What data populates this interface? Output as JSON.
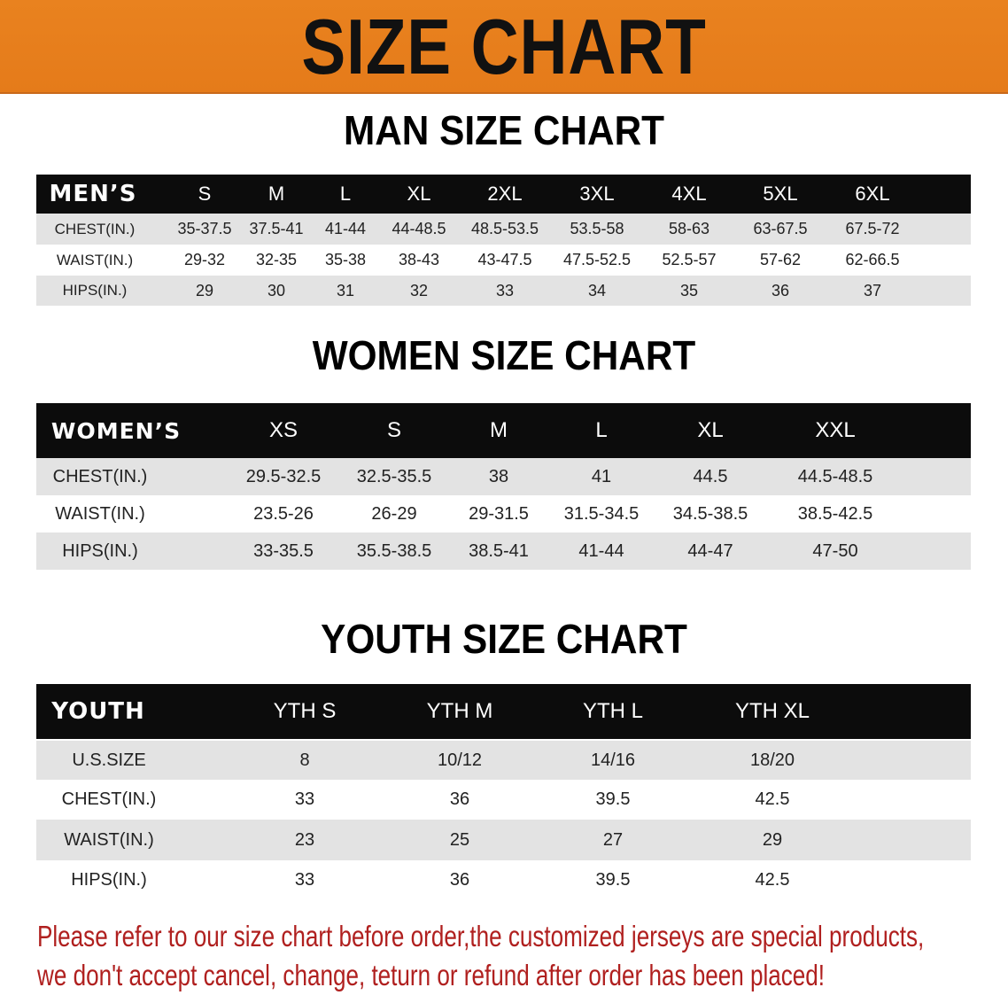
{
  "banner": {
    "title": "SIZE CHART",
    "color": "#e8801e"
  },
  "men": {
    "title": "MAN SIZE CHART",
    "header_label": "MEN’S",
    "sizes": [
      "S",
      "M",
      "L",
      "XL",
      "2XL",
      "3XL",
      "4XL",
      "5XL",
      "6XL"
    ],
    "rows": [
      {
        "label": "CHEST(IN.)",
        "values": [
          "35-37.5",
          "37.5-41",
          "41-44",
          "44-48.5",
          "48.5-53.5",
          "53.5-58",
          "58-63",
          "63-67.5",
          "67.5-72"
        ]
      },
      {
        "label": "WAIST(IN.)",
        "values": [
          "29-32",
          "32-35",
          "35-38",
          "38-43",
          "43-47.5",
          "47.5-52.5",
          "52.5-57",
          "57-62",
          "62-66.5"
        ]
      },
      {
        "label": "HIPS(IN.)",
        "values": [
          "29",
          "30",
          "31",
          "32",
          "33",
          "34",
          "35",
          "36",
          "37"
        ]
      }
    ]
  },
  "women": {
    "title": "WOMEN SIZE CHART",
    "header_label": "WOMEN’S",
    "sizes": [
      "XS",
      "S",
      "M",
      "L",
      "XL",
      "XXL"
    ],
    "rows": [
      {
        "label": "CHEST(IN.)",
        "values": [
          "29.5-32.5",
          "32.5-35.5",
          "38",
          "41",
          "44.5",
          "44.5-48.5"
        ]
      },
      {
        "label": "WAIST(IN.)",
        "values": [
          "23.5-26",
          "26-29",
          "29-31.5",
          "31.5-34.5",
          "34.5-38.5",
          "38.5-42.5"
        ]
      },
      {
        "label": "HIPS(IN.)",
        "values": [
          "33-35.5",
          "35.5-38.5",
          "38.5-41",
          "41-44",
          "44-47",
          "47-50"
        ]
      }
    ]
  },
  "youth": {
    "title": "YOUTH SIZE CHART",
    "header_label": "YOUTH",
    "sizes": [
      "YTH S",
      "YTH M",
      "YTH L",
      "YTH XL"
    ],
    "rows": [
      {
        "label": "U.S.SIZE",
        "values": [
          "8",
          "10/12",
          "14/16",
          "18/20"
        ]
      },
      {
        "label": "CHEST(IN.)",
        "values": [
          "33",
          "36",
          "39.5",
          "42.5"
        ]
      },
      {
        "label": "WAIST(IN.)",
        "values": [
          "23",
          "25",
          "27",
          "29"
        ]
      },
      {
        "label": "HIPS(IN.)",
        "values": [
          "33",
          "36",
          "39.5",
          "42.5"
        ]
      }
    ]
  },
  "notice": {
    "line1": "Please refer to our size chart before order,the customized jerseys are special products,",
    "line2": "we don't accept cancel, change, teturn or refund after order has been placed!",
    "color": "#b0201f"
  }
}
